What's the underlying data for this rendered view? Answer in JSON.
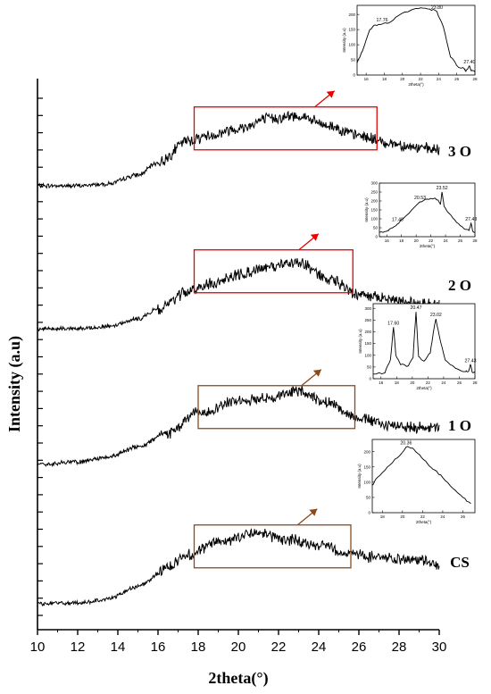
{
  "chart_data": {
    "type": "line",
    "xlabel": "2theta(°)",
    "ylabel": "Intensity (a.u)",
    "xlim": [
      10,
      30
    ],
    "xticks": [
      "10",
      "12",
      "14",
      "16",
      "18",
      "20",
      "22",
      "24",
      "26",
      "28",
      "30"
    ],
    "grid": false,
    "series": [
      {
        "name": "3 O",
        "color": "#000000",
        "anchors": [
          [
            10,
            0.33
          ],
          [
            12,
            0.33
          ],
          [
            13.5,
            0.37
          ],
          [
            15,
            0.55
          ],
          [
            16,
            0.8
          ],
          [
            17.5,
            1.25
          ],
          [
            18.5,
            1.35
          ],
          [
            20,
            1.5
          ],
          [
            21.5,
            1.7
          ],
          [
            23,
            1.75
          ],
          [
            24.5,
            1.55
          ],
          [
            26,
            1.35
          ],
          [
            27.5,
            1.2
          ],
          [
            29,
            1.1
          ],
          [
            30,
            1.05
          ]
        ],
        "highlight_range": [
          17.8,
          26.9
        ],
        "box_color": "#e60000"
      },
      {
        "name": "2 O",
        "color": "#000000",
        "anchors": [
          [
            10,
            0.25
          ],
          [
            12,
            0.25
          ],
          [
            13.5,
            0.3
          ],
          [
            15,
            0.45
          ],
          [
            16,
            0.65
          ],
          [
            17.5,
            1.0
          ],
          [
            18.5,
            1.15
          ],
          [
            20,
            1.35
          ],
          [
            21.5,
            1.5
          ],
          [
            23,
            1.6
          ],
          [
            24.5,
            1.25
          ],
          [
            26,
            0.95
          ],
          [
            27.5,
            0.85
          ],
          [
            29,
            0.78
          ],
          [
            30,
            0.75
          ]
        ],
        "highlight_range": [
          17.8,
          25.7
        ],
        "box_color": "#e60000"
      },
      {
        "name": "1 O",
        "color": "#000000",
        "anchors": [
          [
            10,
            0.2
          ],
          [
            12,
            0.25
          ],
          [
            13.5,
            0.35
          ],
          [
            15,
            0.55
          ],
          [
            16.5,
            0.85
          ],
          [
            18,
            1.25
          ],
          [
            20,
            1.5
          ],
          [
            21.5,
            1.55
          ],
          [
            23,
            1.7
          ],
          [
            24.5,
            1.45
          ],
          [
            26,
            1.15
          ],
          [
            27.5,
            1.0
          ],
          [
            29,
            0.95
          ],
          [
            30,
            0.95
          ]
        ],
        "highlight_range": [
          18.0,
          25.8
        ],
        "box_color": "#8b4a1c"
      },
      {
        "name": "CS",
        "color": "#000000",
        "anchors": [
          [
            10,
            0.2
          ],
          [
            12,
            0.22
          ],
          [
            13.5,
            0.3
          ],
          [
            15,
            0.55
          ],
          [
            16.5,
            0.95
          ],
          [
            17.5,
            1.2
          ],
          [
            19,
            1.45
          ],
          [
            20.8,
            1.65
          ],
          [
            22.5,
            1.5
          ],
          [
            24,
            1.4
          ],
          [
            25.5,
            1.22
          ],
          [
            27,
            1.15
          ],
          [
            28.5,
            1.08
          ],
          [
            30,
            1.02
          ]
        ],
        "highlight_range": [
          17.8,
          25.6
        ],
        "box_color": "#8b4a1c"
      }
    ],
    "insets": [
      {
        "for": "3 O",
        "xlabel": "2theta(°)",
        "ylabel": "Intensity (a.u)",
        "xticks": [
          "16",
          "18",
          "20",
          "22",
          "24",
          "26",
          "28"
        ],
        "yticks": [
          "0",
          "50",
          "100",
          "150",
          "200"
        ],
        "xlim": [
          15,
          28
        ],
        "ylim": [
          0,
          230
        ],
        "points": [
          [
            15,
            40
          ],
          [
            15.6,
            80
          ],
          [
            16.4,
            150
          ],
          [
            17.0,
            165
          ],
          [
            17.76,
            168
          ],
          [
            18.5,
            172
          ],
          [
            19.5,
            195
          ],
          [
            21.0,
            215
          ],
          [
            22.0,
            222
          ],
          [
            23.0,
            218
          ],
          [
            23.8,
            210
          ],
          [
            24.5,
            160
          ],
          [
            25.3,
            60
          ],
          [
            26.2,
            25
          ],
          [
            26.8,
            22
          ],
          [
            27.0,
            12
          ],
          [
            27.4,
            30
          ],
          [
            27.6,
            14
          ],
          [
            28,
            10
          ]
        ],
        "peaks": [
          {
            "x": 17.76,
            "label": "17.76"
          },
          {
            "x": 23.8,
            "label": "23.80"
          },
          {
            "x": 27.4,
            "label": "27.40"
          }
        ]
      },
      {
        "for": "2 O",
        "xlabel": "2theta(°)",
        "ylabel": "Intensity (a.u)",
        "xticks": [
          "16",
          "18",
          "20",
          "22",
          "24",
          "26",
          "28"
        ],
        "yticks": [
          "0",
          "50",
          "100",
          "150",
          "200",
          "250",
          "300"
        ],
        "xlim": [
          15,
          28
        ],
        "ylim": [
          0,
          300
        ],
        "points": [
          [
            15,
            25
          ],
          [
            16,
            30
          ],
          [
            16.5,
            45
          ],
          [
            17.2,
            60
          ],
          [
            17.48,
            72
          ],
          [
            18.0,
            95
          ],
          [
            19.0,
            130
          ],
          [
            20.5,
            195
          ],
          [
            21.5,
            210
          ],
          [
            22.5,
            215
          ],
          [
            23.0,
            205
          ],
          [
            23.3,
            180
          ],
          [
            23.52,
            250
          ],
          [
            23.8,
            170
          ],
          [
            24.5,
            130
          ],
          [
            25.5,
            80
          ],
          [
            26.5,
            45
          ],
          [
            27.2,
            35
          ],
          [
            27.48,
            75
          ],
          [
            27.7,
            30
          ],
          [
            28,
            25
          ]
        ],
        "peaks": [
          {
            "x": 17.48,
            "label": "17.48"
          },
          {
            "x": 20.53,
            "label": "20.53"
          },
          {
            "x": 23.52,
            "label": "23.52"
          },
          {
            "x": 27.48,
            "label": "27.48"
          }
        ]
      },
      {
        "for": "1 O",
        "xlabel": "2theta(°)",
        "ylabel": "Intensity (a.u)",
        "xticks": [
          "16",
          "18",
          "20",
          "22",
          "24",
          "26",
          "28"
        ],
        "yticks": [
          "0",
          "50",
          "100",
          "150",
          "200",
          "250",
          "300"
        ],
        "xlim": [
          15,
          28
        ],
        "ylim": [
          0,
          320
        ],
        "points": [
          [
            15,
            20
          ],
          [
            16.5,
            25
          ],
          [
            17.2,
            80
          ],
          [
            17.6,
            220
          ],
          [
            17.9,
            100
          ],
          [
            18.5,
            60
          ],
          [
            19.5,
            55
          ],
          [
            20.1,
            90
          ],
          [
            20.47,
            285
          ],
          [
            20.8,
            95
          ],
          [
            21.5,
            75
          ],
          [
            22.3,
            110
          ],
          [
            22.7,
            200
          ],
          [
            23.02,
            255
          ],
          [
            23.4,
            190
          ],
          [
            24.2,
            80
          ],
          [
            25.5,
            45
          ],
          [
            26.8,
            30
          ],
          [
            27.2,
            32
          ],
          [
            27.43,
            60
          ],
          [
            27.65,
            28
          ],
          [
            28,
            25
          ]
        ],
        "peaks": [
          {
            "x": 17.6,
            "label": "17.60"
          },
          {
            "x": 20.47,
            "label": "20.47"
          },
          {
            "x": 23.02,
            "label": "23.02"
          },
          {
            "x": 27.43,
            "label": "27.43"
          }
        ]
      },
      {
        "for": "CS",
        "xlabel": "2theta(°)",
        "ylabel": "Intensity (a.u)",
        "xticks": [
          "18",
          "20",
          "22",
          "24",
          "26"
        ],
        "yticks": [
          "0",
          "50",
          "100",
          "150",
          "200"
        ],
        "xlim": [
          17,
          27.2
        ],
        "ylim": [
          0,
          240
        ],
        "points": [
          [
            17,
            90
          ],
          [
            17.5,
            115
          ],
          [
            18.5,
            150
          ],
          [
            19.5,
            180
          ],
          [
            20.36,
            215
          ],
          [
            21.0,
            212
          ],
          [
            21.7,
            190
          ],
          [
            22.5,
            160
          ],
          [
            23.2,
            140
          ],
          [
            24.0,
            115
          ],
          [
            25.0,
            80
          ],
          [
            26.0,
            50
          ],
          [
            26.8,
            30
          ]
        ],
        "peaks": [
          {
            "x": 20.36,
            "label": "20.36"
          }
        ]
      }
    ]
  }
}
